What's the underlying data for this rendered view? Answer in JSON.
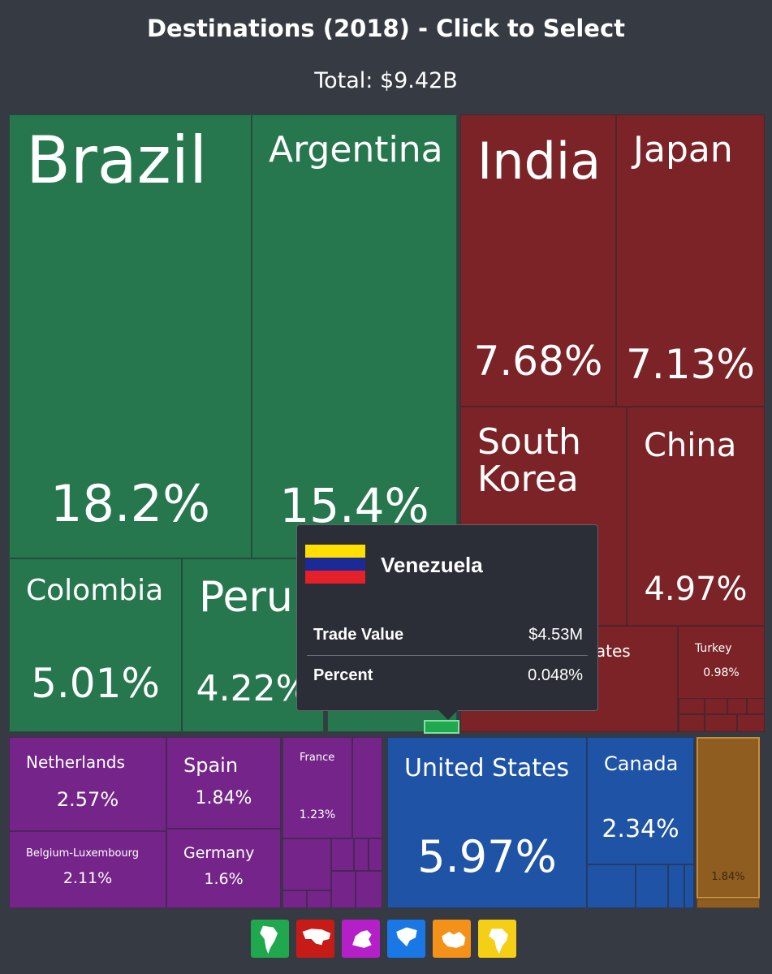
{
  "header": {
    "title": "Destinations (2018) - Click to Select",
    "total": "Total: $9.42B"
  },
  "colors": {
    "south_america": "#27774e",
    "asia": "#7b2326",
    "europe": "#75258a",
    "north_america": "#1f53a6",
    "oceania": "#8f5d20",
    "background": "#363a43"
  },
  "chart_data": {
    "type": "treemap",
    "title": "Destinations (2018) - Click to Select",
    "subtitle": "Total: $9.42B",
    "items": [
      {
        "name": "Brazil",
        "percent": "18.2%",
        "value": 18.2,
        "group": "south_america"
      },
      {
        "name": "Argentina",
        "percent": "15.4%",
        "value": 15.4,
        "group": "south_america"
      },
      {
        "name": "Colombia",
        "percent": "5.01%",
        "value": 5.01,
        "group": "south_america"
      },
      {
        "name": "Peru",
        "percent": "4.22%",
        "value": 4.22,
        "group": "south_america"
      },
      {
        "name": "India",
        "percent": "7.68%",
        "value": 7.68,
        "group": "asia"
      },
      {
        "name": "Japan",
        "percent": "7.13%",
        "value": 7.13,
        "group": "asia"
      },
      {
        "name": "South Korea",
        "percent": "",
        "value": null,
        "group": "asia"
      },
      {
        "name": "China",
        "percent": "4.97%",
        "value": 4.97,
        "group": "asia"
      },
      {
        "name": "United Arab Emirates",
        "percent": "",
        "value": null,
        "group": "asia"
      },
      {
        "name": "Turkey",
        "percent": "0.98%",
        "value": 0.98,
        "group": "asia"
      },
      {
        "name": "Netherlands",
        "percent": "2.57%",
        "value": 2.57,
        "group": "europe"
      },
      {
        "name": "Spain",
        "percent": "1.84%",
        "value": 1.84,
        "group": "europe"
      },
      {
        "name": "France",
        "percent": "1.23%",
        "value": 1.23,
        "group": "europe"
      },
      {
        "name": "Belgium-Luxembourg",
        "percent": "2.11%",
        "value": 2.11,
        "group": "europe"
      },
      {
        "name": "Germany",
        "percent": "1.6%",
        "value": 1.6,
        "group": "europe"
      },
      {
        "name": "United States",
        "percent": "5.97%",
        "value": 5.97,
        "group": "north_america"
      },
      {
        "name": "Canada",
        "percent": "2.34%",
        "value": 2.34,
        "group": "north_america"
      },
      {
        "name": "",
        "percent": "1.84%",
        "value": 1.84,
        "group": "oceania"
      }
    ]
  },
  "tooltip": {
    "country": "Venezuela",
    "trade_value_label": "Trade Value",
    "trade_value": "$4.53M",
    "percent_label": "Percent",
    "percent": "0.048%",
    "flag_colors": [
      "#ffde00",
      "#1b2a94",
      "#e52028"
    ]
  },
  "continent_filters": [
    {
      "name": "south-america-filter",
      "icon": "south-america-icon",
      "color": "#1fa84d"
    },
    {
      "name": "asia-filter",
      "icon": "asia-icon",
      "color": "#c61b17"
    },
    {
      "name": "europe-filter",
      "icon": "europe-icon",
      "color": "#b51fc7"
    },
    {
      "name": "north-america-filter",
      "icon": "north-america-icon",
      "color": "#1977e6"
    },
    {
      "name": "oceania-filter",
      "icon": "oceania-icon",
      "color": "#f49119"
    },
    {
      "name": "africa-filter",
      "icon": "africa-icon",
      "color": "#f5cf15"
    }
  ]
}
